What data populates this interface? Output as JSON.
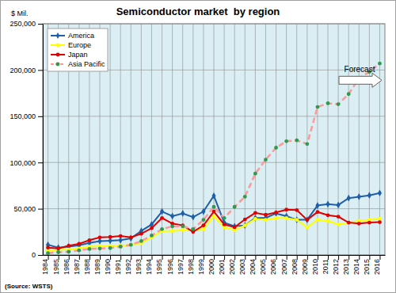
{
  "chart_data": {
    "type": "line",
    "title": "Semiconductor market  by region",
    "y_label": "$ Mil.",
    "source": "(Source: WSTS)",
    "annotations": [
      "Forecast"
    ],
    "categories": [
      "1984",
      "1985",
      "1986",
      "1987",
      "1988",
      "1989",
      "1990",
      "1991",
      "1992",
      "1993",
      "1994",
      "1995",
      "1996",
      "1997",
      "1998",
      "1999",
      "2000",
      "2001",
      "2002",
      "2003",
      "2004",
      "2005",
      "2006",
      "2007",
      "2008",
      "2009",
      "2010",
      "2011",
      "2012",
      "2013",
      "2014",
      "2015",
      "2016"
    ],
    "series": [
      {
        "name": "America",
        "color": "#1f5fa8",
        "marker": "diamond",
        "line_style": "solid",
        "values": [
          11000,
          8000,
          9000,
          10500,
          13000,
          15000,
          15500,
          16000,
          18000,
          26000,
          33000,
          47000,
          42000,
          45000,
          41000,
          47000,
          64000,
          35000,
          31000,
          32000,
          40000,
          40000,
          45000,
          42000,
          38000,
          38000,
          53500,
          55000,
          54000,
          61500,
          63000,
          64500,
          67000
        ]
      },
      {
        "name": "Europe",
        "color": "#ffff00",
        "marker": "circle",
        "line_style": "solid",
        "values": [
          5000,
          5500,
          6000,
          7000,
          9000,
          9500,
          9500,
          10000,
          11000,
          13000,
          19000,
          26000,
          26000,
          27000,
          27000,
          28000,
          42000,
          30000,
          27000,
          32000,
          39000,
          38000,
          40000,
          40000,
          38000,
          30000,
          38000,
          37000,
          33000,
          35000,
          37000,
          38000,
          39000
        ]
      },
      {
        "name": "Japan",
        "color": "#e00000",
        "marker": "circle",
        "line_style": "solid",
        "values": [
          8000,
          7000,
          10000,
          12000,
          16000,
          19000,
          19500,
          20500,
          19000,
          23000,
          29000,
          40000,
          34000,
          32000,
          25000,
          32000,
          47000,
          33000,
          30000,
          38500,
          45500,
          43500,
          46000,
          49000,
          48500,
          38000,
          46500,
          43000,
          41500,
          35000,
          34000,
          35000,
          35500
        ]
      },
      {
        "name": "Asia Pacific",
        "color": "#ff9999",
        "marker": "circle",
        "line_style": "dashed",
        "values": [
          2000,
          3000,
          3500,
          5000,
          6500,
          7000,
          7500,
          9000,
          11000,
          15000,
          21000,
          28000,
          31000,
          31000,
          28000,
          38000,
          52000,
          40000,
          52000,
          63000,
          88000,
          103000,
          116000,
          123000,
          124000,
          120000,
          160000,
          164000,
          163000,
          174000,
          191000,
          198000,
          207000
        ]
      }
    ],
    "ylim": [
      0,
      250000
    ],
    "yticks": [
      0,
      {
        "value": 50000,
        "label": "50,000"
      },
      {
        "value": 100000,
        "label": "100,000"
      },
      {
        "value": 150000,
        "label": "150,000"
      },
      {
        "value": 200000,
        "label": "200,000"
      },
      {
        "value": 250000,
        "label": "250,000"
      }
    ],
    "grid": true,
    "legend": "top-left"
  }
}
